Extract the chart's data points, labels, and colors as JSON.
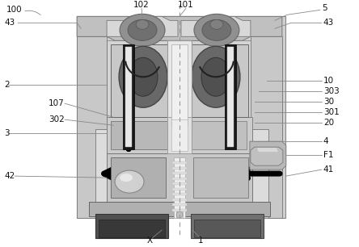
{
  "bg_color": "#ffffff",
  "c_outer": "#c8c8c8",
  "c_mid": "#a8a8a8",
  "c_dark": "#787878",
  "c_darker": "#505050",
  "c_light": "#e0e0e0",
  "c_white": "#f2f2f2",
  "c_black": "#111111",
  "c_gear": "#686868",
  "c_gear_inner": "#484848",
  "c_top_dark": "#707070",
  "c_top_mid": "#909090"
}
